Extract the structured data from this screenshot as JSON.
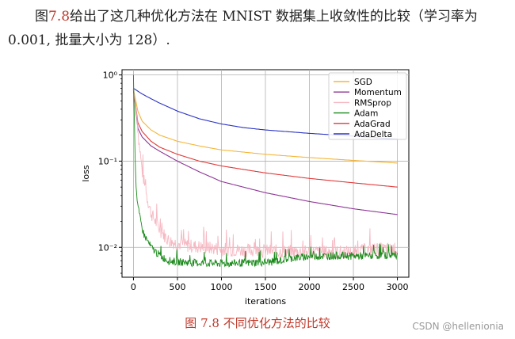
{
  "paragraph": {
    "prefix": "图",
    "ref": "7.8",
    "text_line1": "给出了这几种优化方法在 MNIST 数据集上收敛性的比较（学习率为",
    "text_line2": "0.001, 批量大小为 128）."
  },
  "caption": "图 7.8   不同优化方法的比较",
  "watermark": "CSDN @hellenionia",
  "chart_data": {
    "type": "line",
    "title": "",
    "xlabel": "iterations",
    "ylabel": "loss",
    "xlim": [
      -130,
      3130
    ],
    "ylim": [
      0.0045,
      1.15
    ],
    "yscale": "log",
    "grid": true,
    "legend_position": "top-right",
    "xticks": [
      0,
      500,
      1000,
      1500,
      2000,
      2500,
      3000
    ],
    "yticks": [
      {
        "value": 1,
        "label": "10⁰"
      },
      {
        "value": 0.1,
        "label": "10⁻¹"
      },
      {
        "value": 0.01,
        "label": "10⁻²"
      }
    ],
    "series": [
      {
        "name": "SGD",
        "color": "#f5b63a",
        "x": [
          0,
          50,
          100,
          200,
          300,
          500,
          750,
          1000,
          1500,
          2000,
          2500,
          3000
        ],
        "y": [
          0.68,
          0.38,
          0.29,
          0.23,
          0.2,
          0.17,
          0.15,
          0.135,
          0.12,
          0.11,
          0.102,
          0.095
        ]
      },
      {
        "name": "Momentum",
        "color": "#8e3596",
        "x": [
          0,
          50,
          100,
          200,
          300,
          500,
          750,
          1000,
          1500,
          2000,
          2500,
          3000
        ],
        "y": [
          0.68,
          0.24,
          0.19,
          0.15,
          0.13,
          0.1,
          0.075,
          0.058,
          0.043,
          0.034,
          0.028,
          0.024
        ]
      },
      {
        "name": "RMSprop",
        "color": "#f6b8c2",
        "x": [
          0,
          20,
          40,
          60,
          100,
          150,
          200,
          300,
          400,
          500,
          600,
          800,
          1000,
          1300,
          1600,
          2000,
          2500,
          2700,
          3000
        ],
        "y": [
          0.68,
          0.5,
          0.32,
          0.18,
          0.075,
          0.04,
          0.025,
          0.016,
          0.012,
          0.011,
          0.0105,
          0.01,
          0.0095,
          0.0092,
          0.009,
          0.0088,
          0.0088,
          0.0095,
          0.0095
        ]
      },
      {
        "name": "Adam",
        "color": "#1a8a1a",
        "x": [
          0,
          10,
          20,
          30,
          50,
          80,
          120,
          200,
          300,
          400,
          500,
          700,
          1000,
          1300,
          1600,
          1800,
          2000,
          2300,
          2600,
          3000
        ],
        "y": [
          1.0,
          0.3,
          0.1,
          0.05,
          0.03,
          0.02,
          0.014,
          0.01,
          0.008,
          0.007,
          0.0068,
          0.0066,
          0.0065,
          0.0066,
          0.0068,
          0.0075,
          0.0078,
          0.008,
          0.0079,
          0.0082
        ]
      },
      {
        "name": "AdaGrad",
        "color": "#e03a3a",
        "x": [
          0,
          50,
          100,
          200,
          300,
          500,
          750,
          1000,
          1500,
          2000,
          2500,
          3000
        ],
        "y": [
          0.68,
          0.28,
          0.22,
          0.17,
          0.145,
          0.12,
          0.1,
          0.088,
          0.073,
          0.063,
          0.056,
          0.05
        ]
      },
      {
        "name": "AdaDelta",
        "color": "#2b33c4",
        "x": [
          0,
          100,
          200,
          300,
          500,
          750,
          1000,
          1250,
          1500,
          2000,
          2500,
          3000
        ],
        "y": [
          0.7,
          0.6,
          0.53,
          0.47,
          0.38,
          0.31,
          0.27,
          0.245,
          0.23,
          0.21,
          0.195,
          0.18
        ]
      }
    ]
  }
}
